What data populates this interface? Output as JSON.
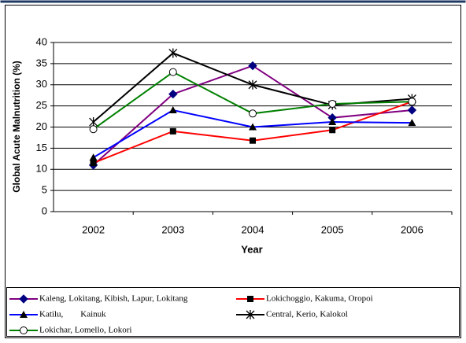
{
  "chart_data": {
    "type": "line",
    "y_label": "Global Acute Malnutrition (%)",
    "x_label": "Year",
    "categories": [
      "2002",
      "2003",
      "2004",
      "2005",
      "2006"
    ],
    "ylim": [
      0,
      40
    ],
    "yticks": [
      0,
      5,
      10,
      15,
      20,
      25,
      30,
      35,
      40
    ],
    "grid": true,
    "series": [
      {
        "name": "Kaleng, Lokitang, Kibish, Lapur, Lokitang",
        "color": "#800080",
        "marker": "diamond",
        "values": [
          11,
          27.8,
          34.5,
          22.2,
          24
        ]
      },
      {
        "name": "Lokichoggio, Kakuma, Oropoi",
        "color": "#ff0000",
        "marker": "square",
        "values": [
          11.5,
          19,
          16.8,
          19.3,
          26
        ]
      },
      {
        "name": "Katilu,        Kainuk",
        "color": "#0000ff",
        "marker": "triangle",
        "values": [
          12.8,
          24,
          20,
          21.2,
          21
        ]
      },
      {
        "name": "Central, Kerio, Kalokol",
        "color": "#000000",
        "marker": "star",
        "values": [
          21.2,
          37.5,
          30,
          25.2,
          26.7
        ]
      },
      {
        "name": "Lokichar, Lomello, Lokori",
        "color": "#008000",
        "marker": "circle",
        "values": [
          19.5,
          33,
          23.2,
          25.5,
          26
        ]
      }
    ]
  }
}
